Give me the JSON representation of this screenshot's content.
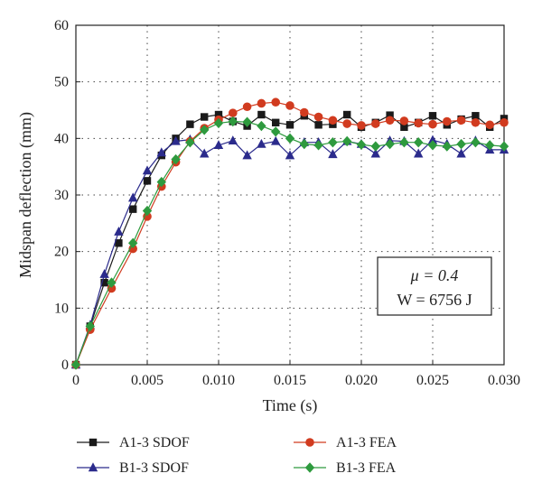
{
  "chart_data": {
    "type": "line",
    "xlabel": "Time (s)",
    "ylabel": "Midspan deflection (mm)",
    "xlim": [
      0,
      0.03
    ],
    "ylim": [
      0,
      60
    ],
    "x_ticks": [
      "0",
      "0.005",
      "0.010",
      "0.015",
      "0.020",
      "0.025",
      "0.030"
    ],
    "y_ticks": [
      "0",
      "10",
      "20",
      "30",
      "40",
      "50",
      "60"
    ],
    "grid": "dotted",
    "legend_position": "bottom",
    "annotation": {
      "line1": "μ = 0.4",
      "line2": "W = 6756 J"
    },
    "series": [
      {
        "name": "A1-3 SDOF",
        "color": "#1a1a1a",
        "marker": "square",
        "points": [
          [
            0,
            0
          ],
          [
            0.001,
            6.8
          ],
          [
            0.002,
            14.5
          ],
          [
            0.003,
            21.5
          ],
          [
            0.004,
            27.5
          ],
          [
            0.005,
            32.5
          ],
          [
            0.006,
            37
          ],
          [
            0.007,
            40
          ],
          [
            0.008,
            42.5
          ],
          [
            0.009,
            43.8
          ],
          [
            0.01,
            44.2
          ],
          [
            0.011,
            43
          ],
          [
            0.012,
            42.2
          ],
          [
            0.013,
            44.2
          ],
          [
            0.014,
            42.8
          ],
          [
            0.015,
            42.4
          ],
          [
            0.016,
            44
          ],
          [
            0.017,
            42.4
          ],
          [
            0.018,
            42.5
          ],
          [
            0.019,
            44.2
          ],
          [
            0.02,
            42
          ],
          [
            0.021,
            42.8
          ],
          [
            0.022,
            44.1
          ],
          [
            0.023,
            42
          ],
          [
            0.024,
            42.8
          ],
          [
            0.025,
            44
          ],
          [
            0.026,
            42.4
          ],
          [
            0.027,
            43.4
          ],
          [
            0.028,
            44
          ],
          [
            0.029,
            42
          ],
          [
            0.03,
            43.5
          ]
        ]
      },
      {
        "name": "B1-3 SDOF",
        "color": "#2b2b8c",
        "marker": "triangle",
        "points": [
          [
            0,
            0
          ],
          [
            0.001,
            7
          ],
          [
            0.002,
            16
          ],
          [
            0.003,
            23.5
          ],
          [
            0.004,
            29.5
          ],
          [
            0.005,
            34.3
          ],
          [
            0.006,
            37.5
          ],
          [
            0.007,
            39.5
          ],
          [
            0.008,
            39.8
          ],
          [
            0.009,
            37.3
          ],
          [
            0.01,
            38.8
          ],
          [
            0.011,
            39.6
          ],
          [
            0.012,
            37
          ],
          [
            0.013,
            39
          ],
          [
            0.014,
            39.5
          ],
          [
            0.015,
            37
          ],
          [
            0.016,
            39.3
          ],
          [
            0.017,
            39.3
          ],
          [
            0.018,
            37.2
          ],
          [
            0.019,
            39.5
          ],
          [
            0.02,
            39
          ],
          [
            0.021,
            37.3
          ],
          [
            0.022,
            39.6
          ],
          [
            0.023,
            39.5
          ],
          [
            0.024,
            37.3
          ],
          [
            0.025,
            39.7
          ],
          [
            0.026,
            39
          ],
          [
            0.027,
            37.3
          ],
          [
            0.028,
            39.6
          ],
          [
            0.029,
            38
          ],
          [
            0.03,
            38
          ]
        ]
      },
      {
        "name": "A1-3 FEA",
        "color": "#d13b1f",
        "marker": "circle",
        "points": [
          [
            0,
            0
          ],
          [
            0.001,
            6.2
          ],
          [
            0.0025,
            13.5
          ],
          [
            0.004,
            20.5
          ],
          [
            0.005,
            26.2
          ],
          [
            0.006,
            31.5
          ],
          [
            0.007,
            35.8
          ],
          [
            0.008,
            39.5
          ],
          [
            0.009,
            41.8
          ],
          [
            0.01,
            43.3
          ],
          [
            0.011,
            44.5
          ],
          [
            0.012,
            45.6
          ],
          [
            0.013,
            46.2
          ],
          [
            0.014,
            46.4
          ],
          [
            0.015,
            45.8
          ],
          [
            0.016,
            44.6
          ],
          [
            0.017,
            43.8
          ],
          [
            0.018,
            43.2
          ],
          [
            0.019,
            42.6
          ],
          [
            0.02,
            42.3
          ],
          [
            0.021,
            42.6
          ],
          [
            0.022,
            43.2
          ],
          [
            0.023,
            43.1
          ],
          [
            0.024,
            42.7
          ],
          [
            0.025,
            42.5
          ],
          [
            0.026,
            43
          ],
          [
            0.027,
            43.2
          ],
          [
            0.028,
            42.8
          ],
          [
            0.029,
            42.4
          ],
          [
            0.03,
            42.8
          ]
        ]
      },
      {
        "name": "B1-3 FEA",
        "color": "#2e9a3e",
        "marker": "diamond",
        "points": [
          [
            0,
            0
          ],
          [
            0.001,
            6.8
          ],
          [
            0.0025,
            14.5
          ],
          [
            0.004,
            21.5
          ],
          [
            0.005,
            27.2
          ],
          [
            0.006,
            32.3
          ],
          [
            0.007,
            36.3
          ],
          [
            0.008,
            39.3
          ],
          [
            0.009,
            41.5
          ],
          [
            0.01,
            42.7
          ],
          [
            0.011,
            43
          ],
          [
            0.012,
            42.9
          ],
          [
            0.013,
            42.2
          ],
          [
            0.014,
            41.2
          ],
          [
            0.015,
            40
          ],
          [
            0.016,
            39
          ],
          [
            0.017,
            38.8
          ],
          [
            0.018,
            39.3
          ],
          [
            0.019,
            39.5
          ],
          [
            0.02,
            38.9
          ],
          [
            0.021,
            38.6
          ],
          [
            0.022,
            39
          ],
          [
            0.023,
            39.3
          ],
          [
            0.024,
            39.3
          ],
          [
            0.025,
            38.8
          ],
          [
            0.026,
            38.6
          ],
          [
            0.027,
            39
          ],
          [
            0.028,
            39.3
          ],
          [
            0.029,
            38.8
          ],
          [
            0.03,
            38.6
          ]
        ]
      }
    ]
  }
}
